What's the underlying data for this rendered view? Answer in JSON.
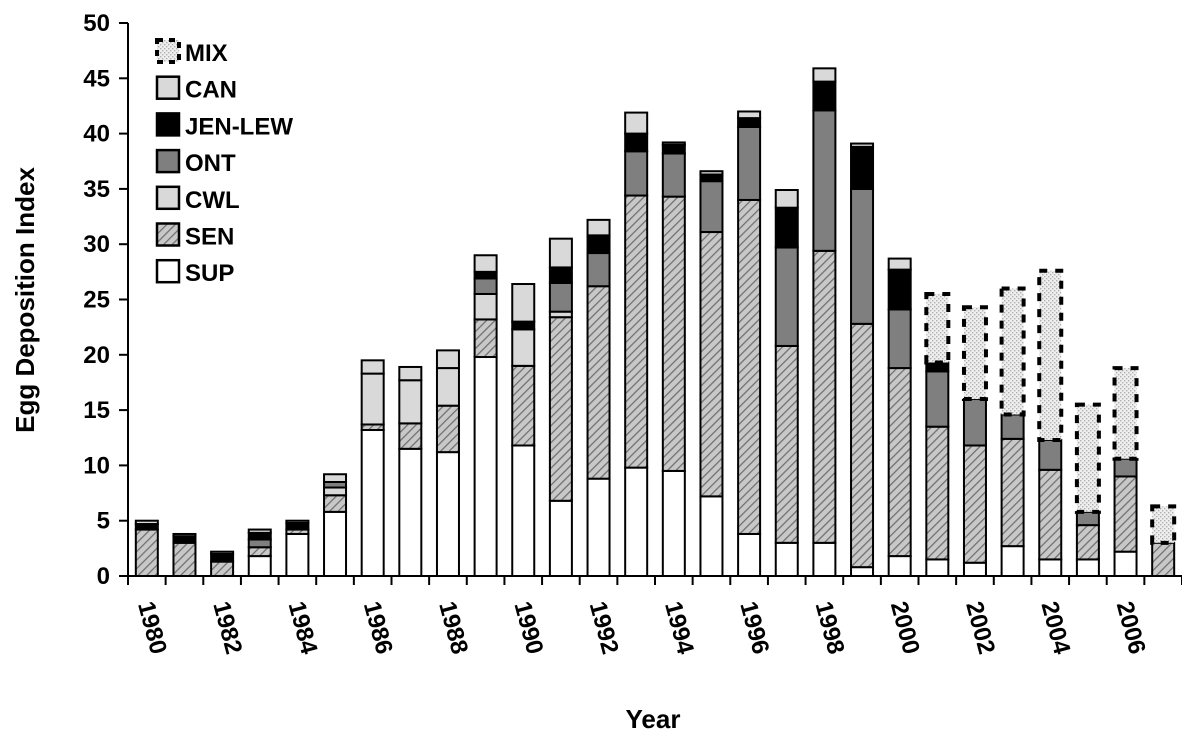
{
  "chart_data": {
    "type": "bar",
    "stacked": true,
    "title": "",
    "xlabel": "Year",
    "ylabel": "Egg Deposition Index",
    "ylim": [
      0,
      50
    ],
    "yticks": [
      0,
      5,
      10,
      15,
      20,
      25,
      30,
      35,
      40,
      45,
      50
    ],
    "categories": [
      "1980",
      "1981",
      "1982",
      "1983",
      "1984",
      "1985",
      "1986",
      "1987",
      "1988",
      "1989",
      "1990",
      "1991",
      "1992",
      "1993",
      "1994",
      "1995",
      "1996",
      "1997",
      "1998",
      "1999",
      "2000",
      "2001",
      "2002",
      "2003",
      "2004",
      "2005",
      "2006",
      "2007"
    ],
    "xtick_labels": [
      "1980",
      "",
      "1982",
      "",
      "1984",
      "",
      "1986",
      "",
      "1988",
      "",
      "1990",
      "",
      "1992",
      "",
      "1994",
      "",
      "1996",
      "",
      "1998",
      "",
      "2000",
      "",
      "2002",
      "",
      "2004",
      "",
      "2006",
      ""
    ],
    "grid": false,
    "legend_position": "top-left",
    "series": [
      {
        "name": "SUP",
        "pattern": "white",
        "values": [
          0,
          0,
          0,
          1.8,
          3.8,
          5.8,
          13.2,
          11.5,
          11.2,
          19.8,
          11.8,
          6.8,
          8.8,
          9.8,
          9.5,
          7.2,
          3.8,
          3.0,
          3.0,
          0.8,
          1.8,
          1.5,
          1.2,
          2.7,
          1.5,
          1.5,
          2.2,
          0
        ]
      },
      {
        "name": "SEN",
        "pattern": "hatch",
        "values": [
          4.2,
          3.0,
          1.3,
          0.8,
          0.4,
          1.5,
          0.5,
          2.3,
          4.2,
          3.4,
          7.2,
          16.6,
          17.4,
          24.6,
          24.8,
          23.9,
          30.2,
          17.8,
          26.4,
          22.0,
          17.0,
          12.0,
          10.6,
          9.7,
          8.1,
          3.1,
          6.8,
          3.0
        ]
      },
      {
        "name": "CWL",
        "pattern": "light",
        "values": [
          0,
          0,
          0,
          0,
          0,
          0.7,
          4.6,
          3.9,
          3.4,
          2.3,
          3.3,
          0.5,
          0,
          0,
          0,
          0,
          0,
          0,
          0,
          0,
          0,
          0,
          0,
          0,
          0,
          0,
          0,
          0
        ]
      },
      {
        "name": "ONT",
        "pattern": "dark",
        "values": [
          0,
          0,
          0,
          0.7,
          0,
          0.5,
          0,
          0,
          0,
          1.4,
          0,
          2.6,
          3.0,
          4.0,
          3.9,
          4.6,
          6.6,
          8.9,
          12.7,
          12.2,
          5.3,
          5.0,
          4.2,
          2.2,
          2.7,
          1.2,
          1.6,
          0
        ]
      },
      {
        "name": "JEN-LEW",
        "pattern": "black",
        "values": [
          0.5,
          0.6,
          0.7,
          0.6,
          0.6,
          0,
          0,
          0,
          0,
          0.6,
          0.7,
          1.4,
          1.6,
          1.6,
          0.8,
          0.6,
          0.8,
          3.6,
          2.6,
          3.8,
          3.6,
          0.8,
          0,
          0,
          0,
          0,
          0,
          0
        ]
      },
      {
        "name": "CAN",
        "pattern": "light",
        "values": [
          0.3,
          0.2,
          0.2,
          0.3,
          0.2,
          0.7,
          1.2,
          1.2,
          1.6,
          1.5,
          3.4,
          2.6,
          1.4,
          1.9,
          0.2,
          0.3,
          0.6,
          1.6,
          1.2,
          0.3,
          1.0,
          0,
          0,
          0,
          0,
          0,
          0,
          0
        ]
      },
      {
        "name": "MIX",
        "pattern": "dotted",
        "values": [
          0,
          0,
          0,
          0,
          0,
          0,
          0,
          0,
          0,
          0,
          0,
          0,
          0,
          0,
          0,
          0,
          0,
          0,
          0,
          0,
          0,
          6.2,
          8.3,
          11.4,
          15.3,
          9.7,
          8.2,
          3.3
        ]
      }
    ],
    "legend_order": [
      "MIX",
      "CAN",
      "JEN-LEW",
      "ONT",
      "CWL",
      "SEN",
      "SUP"
    ],
    "colors": {
      "white": "#ffffff",
      "hatch_bg": "#c8c8c8",
      "hatch_line": "#6e6e6e",
      "light": "#d9d9d9",
      "dark": "#7f7f7f",
      "black": "#000000",
      "dotted_bg": "#efefef",
      "dotted_dot": "#b0b0b0"
    }
  }
}
